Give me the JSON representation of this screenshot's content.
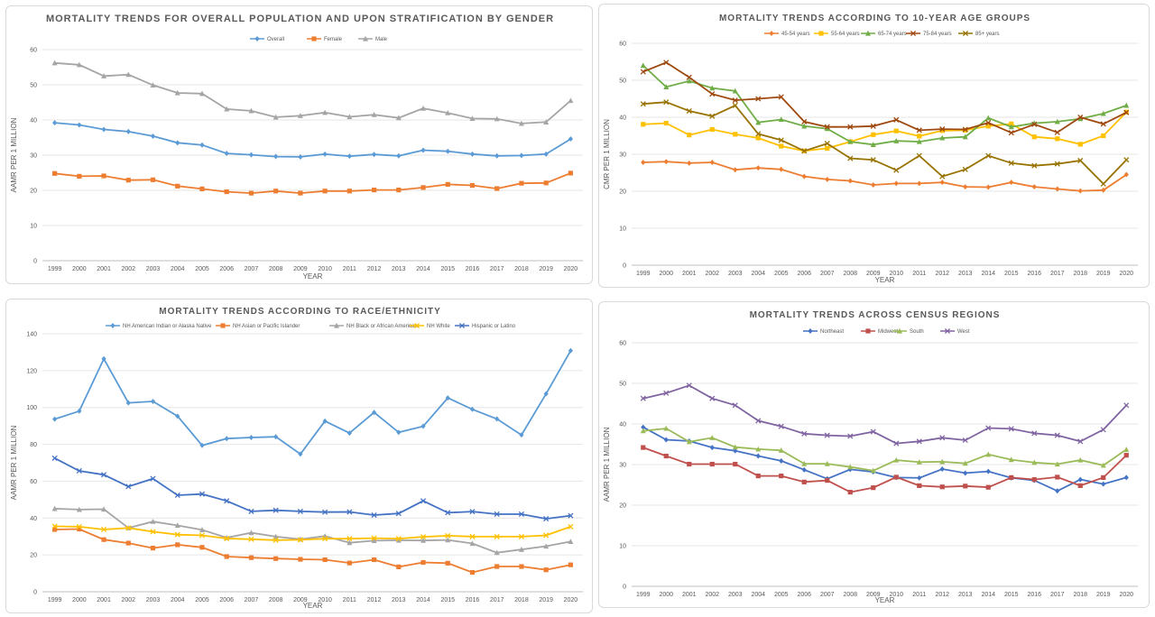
{
  "chart_data": [
    {
      "type": "line",
      "title": "MORTALITY TRENDS FOR OVERALL POPULATION AND UPON STRATIFICATION BY GENDER",
      "xlabel": "YEAR",
      "ylabel": "AAMR PER 1 MILLION",
      "ylim": [
        0,
        60
      ],
      "yticks": [
        0,
        10,
        20,
        30,
        40,
        50,
        60
      ],
      "grid": true,
      "legend": "top",
      "x": [
        "1999",
        "2000",
        "2001",
        "2002",
        "2003",
        "2004",
        "2005",
        "2006",
        "2007",
        "2008",
        "2009",
        "2010",
        "2011",
        "2012",
        "2013",
        "2014",
        "2015",
        "2016",
        "2017",
        "2018",
        "2019",
        "2020"
      ],
      "series": [
        {
          "name": "Overall",
          "color": "#5b9bd5",
          "marker": "diamond",
          "values": [
            39.2,
            38.6,
            37.3,
            36.7,
            35.4,
            33.5,
            32.9,
            30.5,
            30.1,
            29.6,
            29.5,
            30.3,
            29.7,
            30.2,
            29.8,
            31.4,
            31.1,
            30.3,
            29.8,
            29.9,
            30.3,
            34.6
          ]
        },
        {
          "name": "Female",
          "color": "#ed7d31",
          "marker": "square",
          "values": [
            24.8,
            24.0,
            24.1,
            22.9,
            23.0,
            21.2,
            20.4,
            19.6,
            19.2,
            19.8,
            19.2,
            19.8,
            19.8,
            20.1,
            20.1,
            20.8,
            21.7,
            21.4,
            20.5,
            22.0,
            22.1,
            24.9
          ]
        },
        {
          "name": "Male",
          "color": "#a5a5a5",
          "marker": "triangle",
          "values": [
            56.2,
            55.7,
            52.5,
            52.9,
            49.9,
            47.7,
            47.5,
            43.1,
            42.6,
            40.8,
            41.2,
            42.1,
            40.9,
            41.5,
            40.6,
            43.3,
            42.0,
            40.4,
            40.3,
            39.0,
            39.4,
            45.5
          ]
        }
      ]
    },
    {
      "type": "line",
      "title": "MORTALITY TRENDS ACCORDING TO 10-YEAR AGE GROUPS",
      "xlabel": "YEAR",
      "ylabel": "CMR PER 1 MILLION",
      "ylim": [
        0,
        60
      ],
      "yticks": [
        0,
        10,
        20,
        30,
        40,
        50,
        60
      ],
      "grid": true,
      "legend": "top",
      "x": [
        "1999",
        "2000",
        "2001",
        "2002",
        "2003",
        "2004",
        "2005",
        "2006",
        "2007",
        "2008",
        "2009",
        "2010",
        "2011",
        "2012",
        "2013",
        "2014",
        "2015",
        "2016",
        "2017",
        "2018",
        "2019",
        "2020"
      ],
      "series": [
        {
          "name": "45-54 years",
          "color": "#ed7d31",
          "marker": "diamond",
          "values": [
            27.8,
            28.0,
            27.6,
            27.8,
            25.8,
            26.3,
            25.9,
            24.0,
            23.2,
            22.8,
            21.7,
            22.1,
            22.1,
            22.4,
            21.2,
            21.1,
            22.4,
            21.2,
            20.6,
            20.1,
            20.3,
            24.5
          ]
        },
        {
          "name": "55-64 years",
          "color": "#ffc000",
          "marker": "square",
          "values": [
            38.1,
            38.4,
            35.2,
            36.7,
            35.4,
            34.4,
            32.2,
            30.9,
            31.6,
            33.4,
            35.3,
            36.3,
            34.9,
            36.4,
            36.5,
            37.6,
            38.2,
            34.7,
            34.2,
            32.7,
            35.0,
            41.4
          ]
        },
        {
          "name": "65-74 years",
          "color": "#70ad47",
          "marker": "triangle",
          "values": [
            54.0,
            48.2,
            49.8,
            47.9,
            47.1,
            38.6,
            39.4,
            37.6,
            36.9,
            33.4,
            32.6,
            33.6,
            33.4,
            34.4,
            34.7,
            39.8,
            37.4,
            38.4,
            38.8,
            39.6,
            41.0,
            43.2
          ]
        },
        {
          "name": "75-84 years",
          "color": "#9e480e",
          "marker": "cross",
          "values": [
            52.3,
            54.8,
            50.8,
            46.3,
            44.6,
            45.0,
            45.5,
            38.8,
            37.4,
            37.4,
            37.6,
            39.3,
            36.5,
            36.8,
            36.7,
            38.5,
            35.8,
            38.1,
            35.9,
            40.0,
            38.2,
            41.3
          ]
        },
        {
          "name": "85+ years",
          "color": "#997300",
          "marker": "cross",
          "values": [
            43.6,
            44.1,
            41.7,
            40.3,
            43.2,
            35.5,
            33.8,
            30.9,
            32.9,
            28.9,
            28.5,
            25.7,
            29.6,
            24.0,
            25.9,
            29.6,
            27.6,
            26.9,
            27.4,
            28.3,
            22.0,
            28.5
          ]
        }
      ]
    },
    {
      "type": "line",
      "title": "MORTALITY TRENDS ACCORDING TO RACE/ETHNICITY",
      "xlabel": "YEAR",
      "ylabel": "AAMR PER 1 MILLION",
      "ylim": [
        0,
        140
      ],
      "yticks": [
        0,
        20,
        40,
        60,
        80,
        100,
        120,
        140
      ],
      "grid": true,
      "legend": "top",
      "x": [
        "1999",
        "2000",
        "2001",
        "2002",
        "2003",
        "2004",
        "2005",
        "2006",
        "2007",
        "2008",
        "2009",
        "2010",
        "2011",
        "2012",
        "2013",
        "2014",
        "2015",
        "2016",
        "2017",
        "2018",
        "2019",
        "2020"
      ],
      "series": [
        {
          "name": "NH American Indian or Alaska Native",
          "color": "#5b9bd5",
          "marker": "diamond",
          "values": [
            93.7,
            98.0,
            126.4,
            102.5,
            103.3,
            95.3,
            79.4,
            83.1,
            83.7,
            84.1,
            74.7,
            92.6,
            86.1,
            97.3,
            86.5,
            89.8,
            105.2,
            99.0,
            93.8,
            85.1,
            107.4,
            130.8
          ]
        },
        {
          "name": "NH Asian or Pacific Islander",
          "color": "#ed7d31",
          "marker": "square",
          "values": [
            33.8,
            34.0,
            28.3,
            26.4,
            23.7,
            25.5,
            24.1,
            19.1,
            18.5,
            18.0,
            17.6,
            17.4,
            15.6,
            17.4,
            13.5,
            15.9,
            15.5,
            10.5,
            13.7,
            13.7,
            11.9,
            14.6
          ]
        },
        {
          "name": "NH Black or African American",
          "color": "#a5a5a5",
          "marker": "triangle",
          "values": [
            45.1,
            44.6,
            44.8,
            34.6,
            38.1,
            36.0,
            33.6,
            29.3,
            32.0,
            29.9,
            28.5,
            30.2,
            26.6,
            27.7,
            27.9,
            27.8,
            28.1,
            26.2,
            21.2,
            22.9,
            24.7,
            27.2
          ]
        },
        {
          "name": "NH White",
          "color": "#ffc000",
          "marker": "cross",
          "values": [
            35.5,
            35.3,
            33.8,
            34.6,
            32.6,
            31.0,
            30.6,
            28.9,
            28.5,
            28.0,
            28.2,
            28.8,
            28.8,
            29.1,
            28.8,
            29.8,
            30.4,
            29.9,
            29.9,
            29.9,
            30.6,
            35.3
          ]
        },
        {
          "name": "Hispanic or Latino",
          "color": "#4472c4",
          "marker": "cross",
          "values": [
            72.5,
            65.6,
            63.5,
            57.1,
            61.4,
            52.4,
            53.0,
            49.3,
            43.6,
            44.2,
            43.6,
            43.2,
            43.3,
            41.6,
            42.5,
            49.3,
            42.9,
            43.5,
            42.1,
            42.1,
            39.6,
            41.3
          ]
        }
      ]
    },
    {
      "type": "line",
      "title": "MORTALITY TRENDS ACROSS CENSUS REGIONS",
      "xlabel": "YEAR",
      "ylabel": "AAMR PER 1 MILLION",
      "ylim": [
        0,
        60
      ],
      "yticks": [
        0,
        10,
        20,
        30,
        40,
        50,
        60
      ],
      "grid": true,
      "legend": "top",
      "x": [
        "1999",
        "2000",
        "2001",
        "2002",
        "2003",
        "2004",
        "2005",
        "2006",
        "2007",
        "2008",
        "2009",
        "2010",
        "2011",
        "2012",
        "2013",
        "2014",
        "2015",
        "2016",
        "2017",
        "2018",
        "2019",
        "2020"
      ],
      "series": [
        {
          "name": "Northeast",
          "color": "#4472c4",
          "marker": "diamond",
          "values": [
            39.2,
            36.1,
            35.8,
            34.2,
            33.4,
            32.1,
            30.9,
            28.7,
            26.5,
            28.8,
            28.2,
            26.8,
            26.7,
            28.9,
            27.9,
            28.3,
            26.7,
            26.1,
            23.5,
            26.3,
            25.2,
            26.8
          ]
        },
        {
          "name": "Midwest",
          "color": "#c0504d",
          "marker": "square",
          "values": [
            34.2,
            32.1,
            30.1,
            30.1,
            30.1,
            27.2,
            27.2,
            25.7,
            26.1,
            23.2,
            24.3,
            26.9,
            24.8,
            24.5,
            24.7,
            24.4,
            26.8,
            26.3,
            26.9,
            24.8,
            26.8,
            32.3
          ]
        },
        {
          "name": "South",
          "color": "#9bbb59",
          "marker": "triangle",
          "values": [
            38.3,
            38.9,
            35.6,
            36.6,
            34.3,
            33.8,
            33.5,
            30.2,
            30.2,
            29.4,
            28.5,
            31.1,
            30.6,
            30.7,
            30.3,
            32.5,
            31.2,
            30.5,
            30.1,
            31.1,
            29.8,
            33.7
          ]
        },
        {
          "name": "West",
          "color": "#8064a2",
          "marker": "cross",
          "values": [
            46.3,
            47.6,
            49.5,
            46.3,
            44.6,
            40.8,
            39.4,
            37.6,
            37.2,
            37.0,
            38.1,
            35.2,
            35.7,
            36.6,
            36.0,
            39.0,
            38.8,
            37.7,
            37.2,
            35.7,
            38.6,
            44.6
          ]
        }
      ]
    }
  ]
}
